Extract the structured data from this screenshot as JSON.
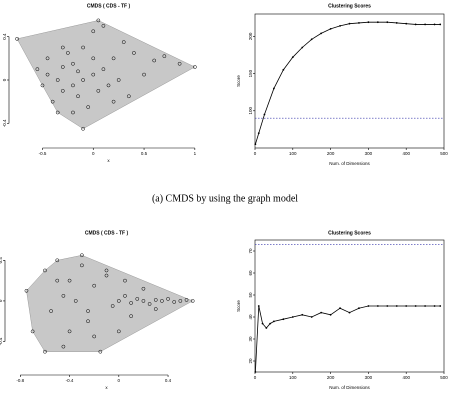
{
  "caption": "(a) CMDS by using the graph model",
  "chart_data": [
    {
      "type": "scatter",
      "title": "CMDS ( CDS - TF )",
      "x_label": "x",
      "xlim": [
        -0.8,
        1.1
      ],
      "xticks": [
        -0.5,
        0.0,
        0.5,
        1.0
      ],
      "ylim": [
        -0.6,
        0.6
      ],
      "yticks": [
        -0.4,
        0.0,
        0.4
      ],
      "color": "#000000",
      "hull_color": "#c8c8c8",
      "x": [
        -0.75,
        -0.55,
        -0.5,
        -0.45,
        -0.4,
        -0.35,
        -0.3,
        -0.3,
        -0.25,
        -0.2,
        -0.2,
        -0.15,
        -0.1,
        -0.1,
        -0.05,
        0.0,
        0.0,
        0.05,
        0.1,
        0.1,
        0.15,
        0.2,
        0.25,
        0.3,
        0.35,
        0.4,
        0.5,
        0.6,
        0.7,
        0.85,
        1.0,
        -0.2,
        -0.1,
        0.0,
        -0.3,
        -0.45,
        0.2,
        -0.15,
        -0.35,
        0.05
      ],
      "y": [
        0.38,
        0.1,
        -0.05,
        0.05,
        -0.2,
        0.0,
        0.12,
        -0.1,
        0.25,
        -0.05,
        0.15,
        -0.15,
        0.0,
        0.3,
        -0.25,
        0.05,
        0.45,
        -0.1,
        0.1,
        0.5,
        -0.05,
        0.2,
        0.0,
        0.35,
        -0.15,
        0.25,
        0.05,
        0.18,
        0.22,
        0.15,
        0.12,
        -0.3,
        -0.45,
        0.2,
        0.3,
        0.2,
        -0.2,
        0.08,
        -0.3,
        0.55
      ]
    },
    {
      "type": "line",
      "title": "Clustering Scores",
      "x_label": "Num. of Dimensions",
      "y_label": "Score",
      "xlim": [
        0,
        500
      ],
      "xticks": [
        0,
        100,
        200,
        300,
        400,
        500
      ],
      "ylim": [
        50,
        230
      ],
      "yticks": [
        100,
        150,
        200
      ],
      "hline": 90,
      "hline_color": "#3333aa",
      "x": [
        1,
        10,
        25,
        50,
        75,
        100,
        125,
        150,
        175,
        200,
        225,
        250,
        275,
        300,
        325,
        350,
        375,
        400,
        425,
        450,
        475,
        490
      ],
      "series": [
        {
          "color": "#000000",
          "values": [
            55,
            70,
            95,
            130,
            155,
            172,
            185,
            196,
            204,
            210,
            214,
            217,
            218,
            219,
            219,
            219,
            218,
            217,
            216,
            216,
            216,
            216
          ]
        }
      ]
    },
    {
      "type": "scatter",
      "title": "CMDS ( CDS - TF )",
      "x_label": "x",
      "xlim": [
        -0.9,
        0.7
      ],
      "xticks": [
        -0.8,
        -0.4,
        0.0,
        0.4
      ],
      "ylim": [
        -0.7,
        0.6
      ],
      "yticks": [
        -0.4,
        0.0,
        0.4
      ],
      "color": "#000000",
      "hull_color": "#c8c8c8",
      "x": [
        -0.75,
        -0.7,
        -0.6,
        -0.55,
        -0.5,
        -0.45,
        -0.4,
        -0.35,
        -0.3,
        -0.25,
        -0.2,
        -0.15,
        -0.1,
        -0.05,
        0.0,
        0.05,
        0.1,
        0.15,
        0.2,
        0.25,
        0.3,
        0.35,
        0.4,
        0.45,
        0.5,
        0.55,
        0.6,
        -0.6,
        -0.4,
        -0.2,
        -0.3,
        -0.5,
        -0.1,
        0.0,
        0.1,
        0.2,
        -0.45,
        -0.25,
        0.05,
        0.3
      ],
      "y": [
        0.1,
        -0.3,
        0.3,
        -0.1,
        0.4,
        -0.45,
        0.2,
        0.0,
        0.45,
        -0.2,
        0.15,
        -0.5,
        0.3,
        -0.05,
        0.0,
        0.05,
        -0.02,
        0.02,
        0.0,
        -0.03,
        0.01,
        0.0,
        0.02,
        -0.01,
        0.0,
        0.01,
        0.0,
        -0.5,
        -0.3,
        -0.35,
        0.35,
        0.2,
        0.25,
        -0.3,
        -0.15,
        0.12,
        0.05,
        -0.1,
        0.2,
        -0.08
      ]
    },
    {
      "type": "line",
      "title": "Clustering Scores",
      "x_label": "Num. of Dimensions",
      "y_label": "Score",
      "xlim": [
        0,
        500
      ],
      "xticks": [
        0,
        100,
        200,
        300,
        400,
        500
      ],
      "ylim": [
        15,
        75
      ],
      "yticks": [
        20,
        30,
        40,
        50,
        60,
        70
      ],
      "hline": 73,
      "hline_color": "#3333aa",
      "x": [
        1,
        10,
        20,
        30,
        40,
        50,
        75,
        100,
        125,
        150,
        175,
        200,
        225,
        250,
        275,
        300,
        325,
        350,
        375,
        400,
        425,
        450,
        475,
        490
      ],
      "series": [
        {
          "color": "#000000",
          "values": [
            15,
            45,
            37,
            35,
            37,
            38,
            39,
            40,
            41,
            40,
            42,
            41,
            44,
            42,
            44,
            45,
            45,
            45,
            45,
            45,
            45,
            45,
            45,
            45
          ]
        }
      ]
    }
  ]
}
